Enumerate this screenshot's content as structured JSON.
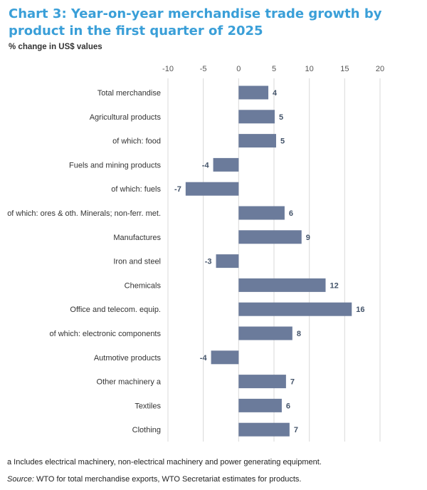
{
  "title": "Chart 3: Year-on-year merchandise trade growth by product in the first quarter of 2025",
  "subtitle": "% change in US$ values",
  "footnote": "a Includes electrical machinery, non-electrical machinery and power generating equipment.",
  "source_label": "Source:",
  "source_text": " WTO for total merchandise exports, WTO Secretariat estimates for products.",
  "colors": {
    "bar": "#6b7b9b",
    "title": "#3a9fd8",
    "grid": "#d9d9d9"
  },
  "chart_data": {
    "type": "bar",
    "orientation": "horizontal",
    "categories": [
      "Total merchandise",
      "Agricultural products",
      "of which: food",
      "Fuels and mining products",
      "of which: fuels",
      "of which: ores & oth. Minerals; non-ferr. met.",
      "Manufactures",
      "Iron and steel",
      "Chemicals",
      "Office and telecom. equip.",
      "of which: electronic components",
      "Autmotive products",
      "Other machinery  a",
      "Textiles",
      "Clothing"
    ],
    "values": [
      4.2,
      5.1,
      5.3,
      -3.6,
      -7.5,
      6.5,
      8.9,
      -3.2,
      12.3,
      16.0,
      7.6,
      -3.9,
      6.7,
      6.1,
      7.2
    ],
    "value_labels": [
      "4",
      "5",
      "5",
      "-4",
      "-7",
      "6",
      "9",
      "-3",
      "12",
      "16",
      "8",
      "-4",
      "7",
      "6",
      "7"
    ],
    "xlim": [
      -10,
      20
    ],
    "xticks": [
      -10,
      -5,
      0,
      5,
      10,
      15,
      20
    ],
    "xtick_labels": [
      "-10",
      "-5",
      "0",
      "5",
      "10",
      "15",
      "20"
    ],
    "axis_position": "top",
    "grid": true,
    "legend": "none"
  }
}
